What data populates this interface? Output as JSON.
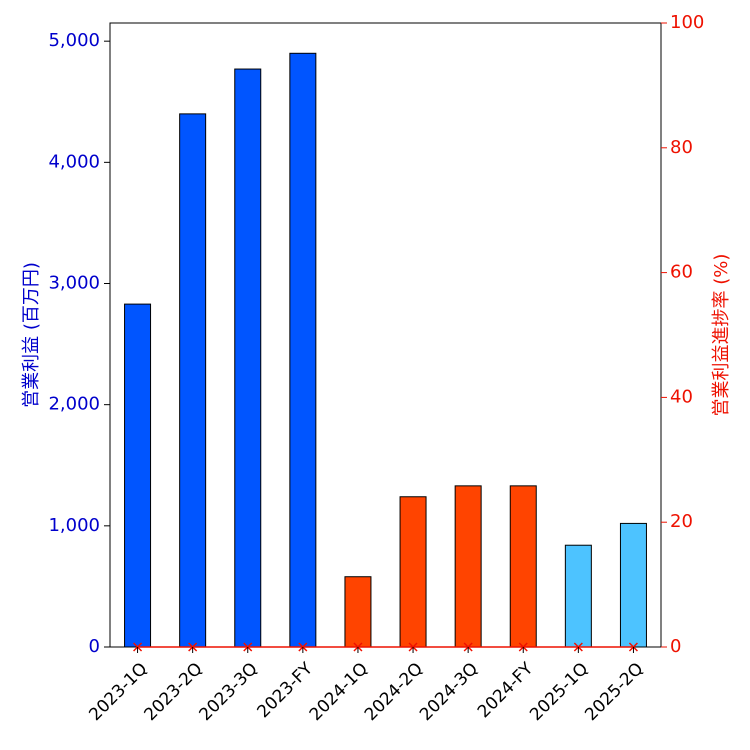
{
  "chart_data": {
    "type": "bar",
    "categories": [
      "2023-1Q",
      "2023-2Q",
      "2023-3Q",
      "2023-FY",
      "2024-1Q",
      "2024-2Q",
      "2024-3Q",
      "2024-FY",
      "2025-1Q",
      "2025-2Q"
    ],
    "series": [
      {
        "axis": "left",
        "values": [
          2830,
          4400,
          4770,
          4900,
          580,
          1240,
          1330,
          1330,
          840,
          1020
        ],
        "colors": [
          "#0055ff",
          "#0055ff",
          "#0055ff",
          "#0055ff",
          "#ff4400",
          "#ff4400",
          "#ff4400",
          "#ff4400",
          "#4dc3ff",
          "#4dc3ff"
        ]
      },
      {
        "axis": "right",
        "type": "line",
        "marker": "x",
        "color": "#ee1100",
        "values": [
          0,
          0,
          0,
          0,
          0,
          0,
          0,
          0,
          0,
          0
        ]
      }
    ],
    "ylabel": "営業利益 (百万円)",
    "ylabel_right": "営業利益進捗率 (%)",
    "ylim": [
      0,
      5150
    ],
    "ylim_right": [
      0,
      100
    ],
    "yticks": [
      "0",
      "1,000",
      "2,000",
      "3,000",
      "4,000",
      "5,000"
    ],
    "yticks_right": [
      "0",
      "20",
      "40",
      "60",
      "80",
      "100"
    ],
    "left_axis_color": "#0000cc",
    "right_axis_color": "#ee1100",
    "grid": false,
    "legend": "none"
  }
}
